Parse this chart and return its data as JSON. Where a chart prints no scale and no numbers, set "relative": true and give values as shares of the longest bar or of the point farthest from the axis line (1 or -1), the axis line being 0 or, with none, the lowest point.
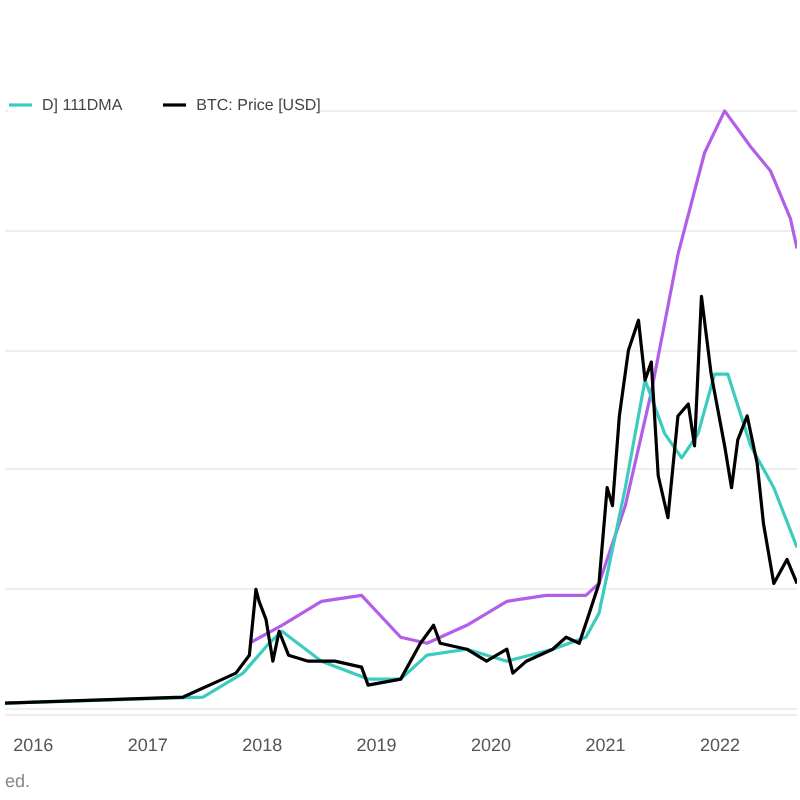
{
  "chart_data": {
    "type": "line",
    "relative": true,
    "grid": "y",
    "legend": "top left",
    "line_style": "solid",
    "xlim": [
      "2015-10-03",
      "2022-09-04"
    ],
    "xticks": [
      "2016",
      "2017",
      "2018",
      "2019",
      "2020",
      "2021",
      "2022"
    ],
    "annotations": [
      "ed."
    ],
    "series": [
      {
        "color": "#b35ee8",
        "x": [
          "2017-11-21",
          "2018-03-05",
          "2018-07-09",
          "2018-11-14",
          "2019-03-19",
          "2019-06-11",
          "2019-10-16",
          "2020-02-21",
          "2020-06-25",
          "2020-10-30",
          "2020-12-11",
          "2021-03-05",
          "2021-05-27",
          "2021-08-20",
          "2021-11-13",
          "2022-01-16",
          "2022-04-09",
          "2022-06-11",
          "2022-08-14",
          "2022-09-04"
        ],
        "values": [
          0.11,
          0.14,
          0.18,
          0.19,
          0.12,
          0.11,
          0.14,
          0.18,
          0.19,
          0.19,
          0.21,
          0.34,
          0.53,
          0.76,
          0.93,
          1.0,
          0.94,
          0.9,
          0.82,
          0.77
        ]
      },
      {
        "name": "D] 111DMA",
        "color": "#3ccbbf",
        "x": [
          "2015-10-03",
          "2017-06-26",
          "2017-11-01",
          "2018-01-23",
          "2018-03-05",
          "2018-07-09",
          "2018-12-05",
          "2019-03-19",
          "2019-06-11",
          "2019-10-16",
          "2020-02-21",
          "2020-07-16",
          "2020-10-30",
          "2020-12-11",
          "2021-03-05",
          "2021-05-07",
          "2021-07-09",
          "2021-09-01",
          "2021-10-23",
          "2021-12-15",
          "2022-01-26",
          "2022-04-09",
          "2022-06-22",
          "2022-09-04"
        ],
        "values": [
          0.01,
          0.02,
          0.06,
          0.11,
          0.13,
          0.08,
          0.05,
          0.05,
          0.09,
          0.1,
          0.08,
          0.1,
          0.12,
          0.16,
          0.37,
          0.55,
          0.46,
          0.42,
          0.46,
          0.56,
          0.56,
          0.44,
          0.37,
          0.27
        ]
      },
      {
        "name": "BTC: Price [USD]",
        "color": "#000000",
        "x": [
          "2015-10-03",
          "2017-04-24",
          "2017-06-05",
          "2017-08-28",
          "2017-10-09",
          "2017-11-21",
          "2017-12-12",
          "2017-12-22",
          "2018-01-13",
          "2018-02-04",
          "2018-02-24",
          "2018-03-26",
          "2018-05-28",
          "2018-08-21",
          "2018-11-14",
          "2018-12-05",
          "2019-03-19",
          "2019-05-21",
          "2019-07-02",
          "2019-07-23",
          "2019-10-16",
          "2019-12-18",
          "2020-02-21",
          "2020-03-11",
          "2020-04-23",
          "2020-07-16",
          "2020-08-28",
          "2020-10-09",
          "2020-11-10",
          "2020-12-11",
          "2021-01-06",
          "2021-01-23",
          "2021-02-14",
          "2021-03-15",
          "2021-04-16",
          "2021-05-07",
          "2021-05-27",
          "2021-06-18",
          "2021-07-19",
          "2021-08-20",
          "2021-09-22",
          "2021-10-12",
          "2021-11-03",
          "2021-12-04",
          "2022-01-16",
          "2022-02-07",
          "2022-02-27",
          "2022-03-29",
          "2022-04-30",
          "2022-05-20",
          "2022-06-22",
          "2022-08-03",
          "2022-09-04"
        ],
        "values": [
          0.01,
          0.02,
          0.03,
          0.05,
          0.06,
          0.09,
          0.2,
          0.18,
          0.15,
          0.08,
          0.13,
          0.09,
          0.08,
          0.08,
          0.07,
          0.04,
          0.05,
          0.11,
          0.14,
          0.11,
          0.1,
          0.08,
          0.1,
          0.06,
          0.08,
          0.1,
          0.12,
          0.11,
          0.16,
          0.21,
          0.37,
          0.34,
          0.49,
          0.6,
          0.65,
          0.55,
          0.58,
          0.39,
          0.32,
          0.49,
          0.51,
          0.44,
          0.69,
          0.56,
          0.44,
          0.37,
          0.45,
          0.49,
          0.41,
          0.31,
          0.21,
          0.25,
          0.21
        ]
      }
    ]
  }
}
